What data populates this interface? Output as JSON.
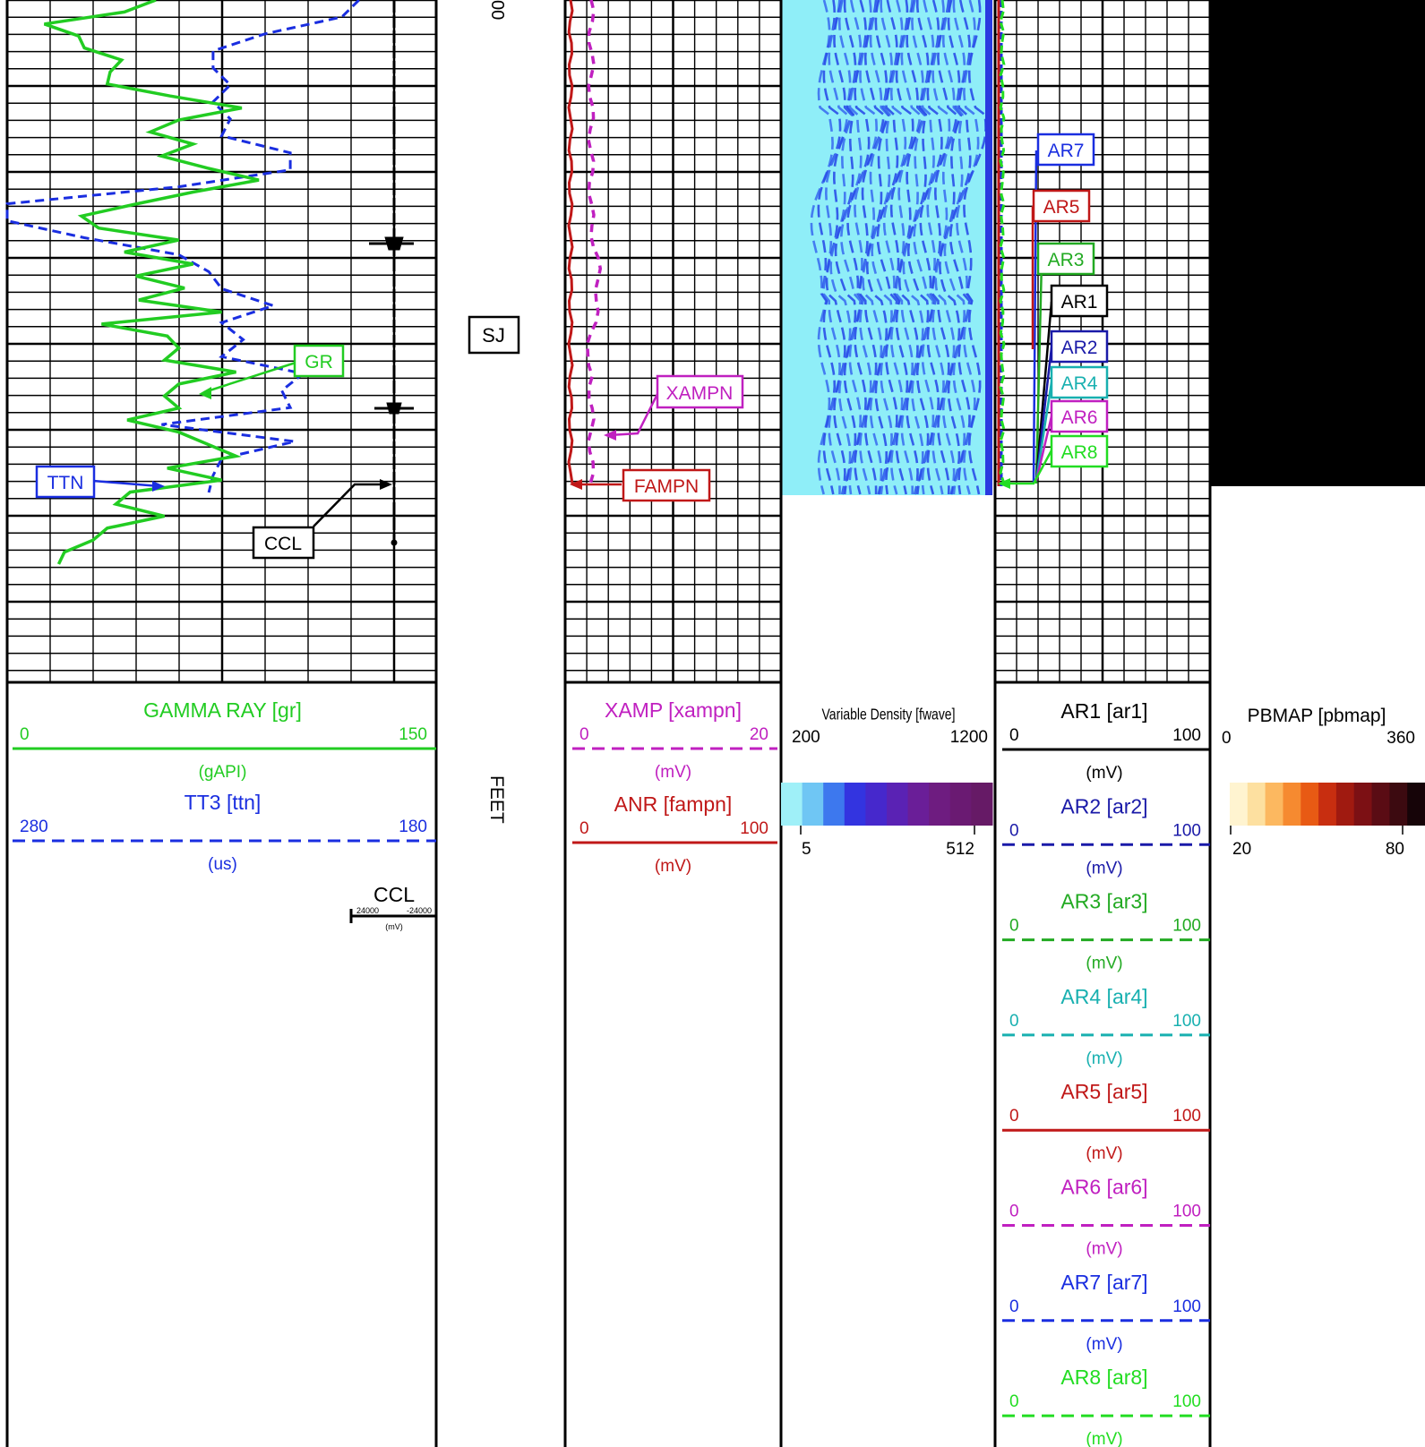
{
  "depth_track": {
    "label_top": "00",
    "label_sj": "SJ",
    "label_unit": "FEET"
  },
  "track1": {
    "annotations": {
      "gr": "GR",
      "ttn": "TTN",
      "ccl": "CCL"
    },
    "headers": [
      {
        "title": "GAMMA RAY  [gr]",
        "left": "0",
        "right": "150",
        "unit": "(gAPI)",
        "color": "#22cc22",
        "dash": "solid"
      },
      {
        "title": "TT3 [ttn]",
        "left": "280",
        "right": "180",
        "unit": "(us)",
        "color": "#1a2ee0",
        "dash": "dashed"
      }
    ],
    "ccl_header": {
      "title": "CCL",
      "left": "24000",
      "right": "-24000",
      "unit": "(mV)"
    }
  },
  "track2": {
    "annotations": {
      "xampn": "XAMPN",
      "fampn": "FAMPN"
    },
    "headers": [
      {
        "title": "XAMP [xampn]",
        "left": "0",
        "right": "20",
        "unit": "(mV)",
        "color": "#c020c0",
        "dash": "dashed"
      },
      {
        "title": "ANR [fampn]",
        "left": "0",
        "right": "100",
        "unit": "(mV)",
        "color": "#c01818",
        "dash": "solid"
      }
    ]
  },
  "track3": {
    "header": {
      "title": "Variable Density [fwave]",
      "left": "200",
      "right": "1200"
    },
    "colorbar": {
      "min": "5",
      "max": "512",
      "colors": [
        "#9ff0f8",
        "#6fc6f4",
        "#3d78ee",
        "#3334e0",
        "#4628cc",
        "#5a22b4",
        "#6a1e98",
        "#6e1c80",
        "#6a1a72",
        "#661a66"
      ]
    }
  },
  "track4": {
    "annotations": [
      {
        "text": "AR7",
        "color": "#1a2ee0"
      },
      {
        "text": "AR5",
        "color": "#c01818"
      },
      {
        "text": "AR3",
        "color": "#22aa22"
      },
      {
        "text": "AR1",
        "color": "#000000"
      },
      {
        "text": "AR2",
        "color": "#1a1aa8"
      },
      {
        "text": "AR4",
        "color": "#18b0b0"
      },
      {
        "text": "AR6",
        "color": "#c020c0"
      },
      {
        "text": "AR8",
        "color": "#22dd22"
      }
    ],
    "headers": [
      {
        "title": "AR1 [ar1]",
        "left": "0",
        "right": "100",
        "unit": "(mV)",
        "color": "#000000",
        "dash": "solid"
      },
      {
        "title": "AR2 [ar2]",
        "left": "0",
        "right": "100",
        "unit": "(mV)",
        "color": "#1a1aa8",
        "dash": "dashed"
      },
      {
        "title": "AR3 [ar3]",
        "left": "0",
        "right": "100",
        "unit": "(mV)",
        "color": "#22aa22",
        "dash": "dashed"
      },
      {
        "title": "AR4 [ar4]",
        "left": "0",
        "right": "100",
        "unit": "(mV)",
        "color": "#18b0b0",
        "dash": "dashed"
      },
      {
        "title": "AR5 [ar5]",
        "left": "0",
        "right": "100",
        "unit": "(mV)",
        "color": "#c01818",
        "dash": "solid"
      },
      {
        "title": "AR6 [ar6]",
        "left": "0",
        "right": "100",
        "unit": "(mV)",
        "color": "#c020c0",
        "dash": "dashed"
      },
      {
        "title": "AR7 [ar7]",
        "left": "0",
        "right": "100",
        "unit": "(mV)",
        "color": "#1a2ee0",
        "dash": "dashed"
      },
      {
        "title": "AR8 [ar8]",
        "left": "0",
        "right": "100",
        "unit": "(mV)",
        "color": "#22dd22",
        "dash": "dashed"
      }
    ]
  },
  "track5": {
    "header": {
      "title": "PBMAP [pbmap]",
      "left": "0",
      "right": "360"
    },
    "colorbar": {
      "min": "20",
      "max": "80",
      "colors": [
        "#fff4d0",
        "#fde0a0",
        "#fcb860",
        "#f68a30",
        "#e85a14",
        "#c82e10",
        "#a01a10",
        "#7c1014",
        "#5a0c14",
        "#3c0a10",
        "#160408"
      ]
    }
  },
  "chart_data": {
    "type": "line",
    "title": "",
    "curves": [
      {
        "name": "GR",
        "mnemonic": "gr",
        "range": [
          0,
          150
        ],
        "unit": "gAPI",
        "values": [
          52,
          41,
          13,
          25,
          27,
          40,
          36,
          35,
          57,
          82,
          60,
          50,
          65,
          54,
          70,
          88,
          65,
          45,
          26,
          32,
          60,
          41,
          65,
          45,
          62,
          46,
          75,
          33,
          56,
          60,
          55,
          80,
          60,
          55,
          60,
          42,
          60,
          70,
          80,
          56,
          75,
          43,
          38,
          55,
          35,
          30,
          20,
          18
        ]
      },
      {
        "name": "TTN",
        "mnemonic": "ttn",
        "range": [
          280,
          180
        ],
        "unit": "us",
        "values": [
          198,
          202,
          220,
          232,
          232,
          228,
          232,
          228,
          230,
          214,
          214,
          240,
          280,
          280,
          262,
          240,
          233,
          230,
          218,
          230,
          225,
          230,
          211,
          216,
          214,
          244,
          213,
          230,
          232,
          233
        ]
      }
    ],
    "ccl_events": [
      "spike",
      "spike"
    ]
  }
}
